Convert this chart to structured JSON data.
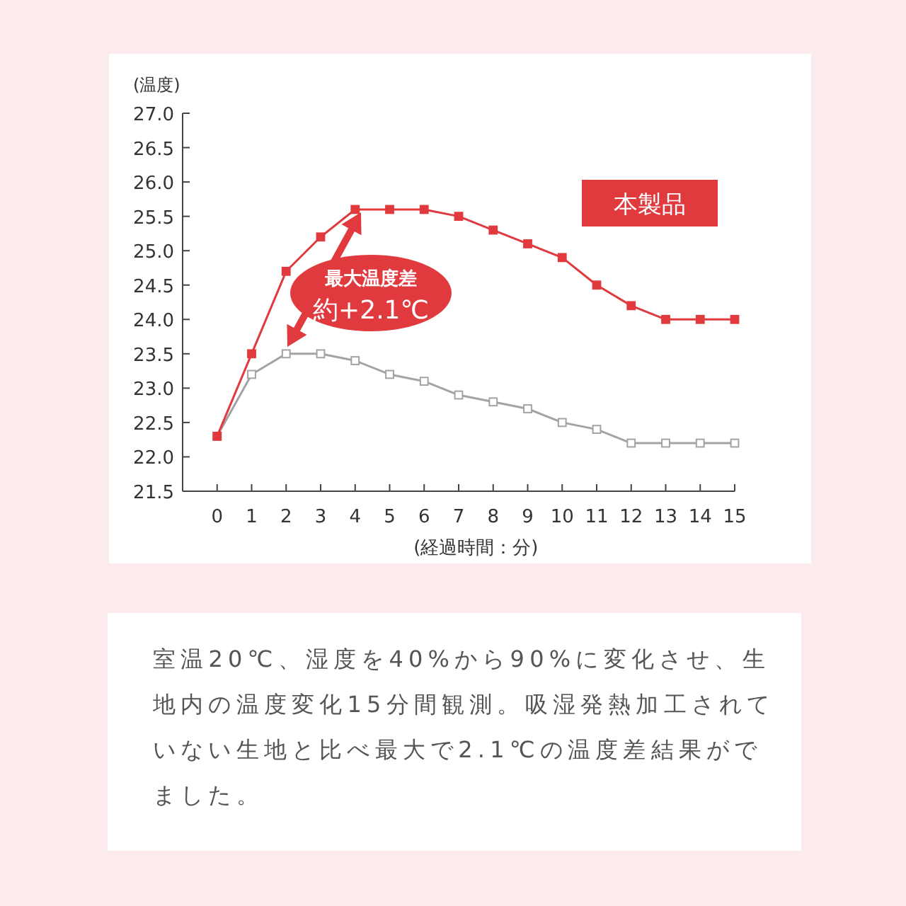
{
  "chart_data": {
    "type": "line",
    "ylabel": "(温度)",
    "xlabel": "(経過時間：分)",
    "x": [
      0,
      1,
      2,
      3,
      4,
      5,
      6,
      7,
      8,
      9,
      10,
      11,
      12,
      13,
      14,
      15
    ],
    "series": [
      {
        "name": "本製品",
        "color": "#e03a3e",
        "values": [
          22.3,
          23.5,
          24.7,
          25.2,
          25.6,
          25.6,
          25.6,
          25.5,
          25.3,
          25.1,
          24.9,
          24.5,
          24.2,
          24.0,
          24.0,
          24.0
        ]
      },
      {
        "color": "#a3a3a3",
        "values": [
          22.3,
          23.2,
          23.5,
          23.5,
          23.4,
          23.2,
          23.1,
          22.9,
          22.8,
          22.7,
          22.5,
          22.4,
          22.2,
          22.2,
          22.2,
          22.2
        ]
      }
    ],
    "xlim": [
      -1,
      15
    ],
    "xticks": [
      0,
      1,
      2,
      3,
      4,
      5,
      6,
      7,
      8,
      9,
      10,
      11,
      12,
      13,
      14,
      15
    ],
    "ylim": [
      21.5,
      27
    ],
    "yticks": [
      {
        "value": 21.5,
        "label": "21.5"
      },
      {
        "value": 22,
        "label": "22.0"
      },
      {
        "value": 22.5,
        "label": "22.5"
      },
      {
        "value": 23,
        "label": "23.0"
      },
      {
        "value": 23.5,
        "label": "23.5"
      },
      {
        "value": 24,
        "label": "24.0"
      },
      {
        "value": 24.5,
        "label": "24.5"
      },
      {
        "value": 25,
        "label": "25.0"
      },
      {
        "value": 25.5,
        "label": "25.5"
      },
      {
        "value": 26,
        "label": "26.0"
      },
      {
        "value": 26.5,
        "label": "26.5"
      },
      {
        "value": 27,
        "label": "27.0"
      }
    ],
    "marker": "square",
    "grid": false,
    "legend": "top right",
    "annotations": [
      "最大温度差",
      "約+2.1℃",
      "室温20℃、湿度を40%から90%に変化させ、生地内の温度変化15分間観測。吸湿発熱加工されていない生地と比べ最大で2.1℃の温度差結果がでました。"
    ]
  }
}
